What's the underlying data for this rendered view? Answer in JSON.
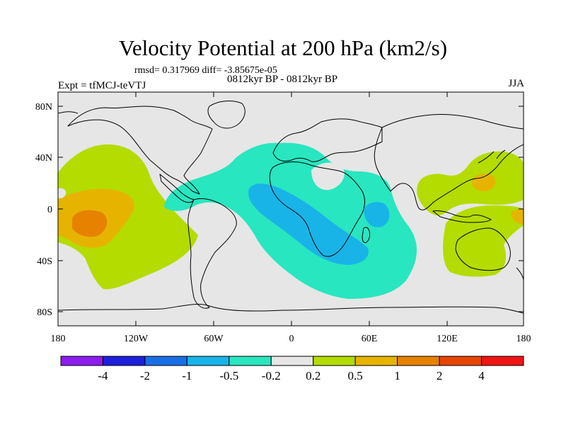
{
  "title": "Velocity Potential at 200 hPa (km2/s)",
  "stats_line": "rmsd= 0.317969 diff= -3.85675e-05",
  "subtitle": "0812kyr BP - 0812kyr BP",
  "experiment": "Expt = tfMCJ-teVTJ",
  "season": "JJA",
  "lat_labels": [
    "80N",
    "40N",
    "0",
    "40S",
    "80S"
  ],
  "lon_labels": [
    "180",
    "120W",
    "60W",
    "0",
    "60E",
    "120E",
    "180"
  ],
  "colorbar": {
    "colors": [
      "#8c1cf0",
      "#1c20dc",
      "#1a6fe6",
      "#18b4e8",
      "#28e6c0",
      "#e6e6e6",
      "#b4dc00",
      "#e6b400",
      "#e68200",
      "#e64600",
      "#f01414"
    ],
    "labels": [
      "-4",
      "-2",
      "-1",
      "-0.5",
      "-0.2",
      "0.2",
      "0.5",
      "1",
      "2",
      "4"
    ]
  },
  "fill_colors": {
    "neutral": "#e6e6e6",
    "neg_light": "#28e6c0",
    "neg_mid": "#18b4e8",
    "pos_light": "#b4dc00",
    "pos_mid": "#e6b400",
    "pos_strong": "#e68200"
  }
}
